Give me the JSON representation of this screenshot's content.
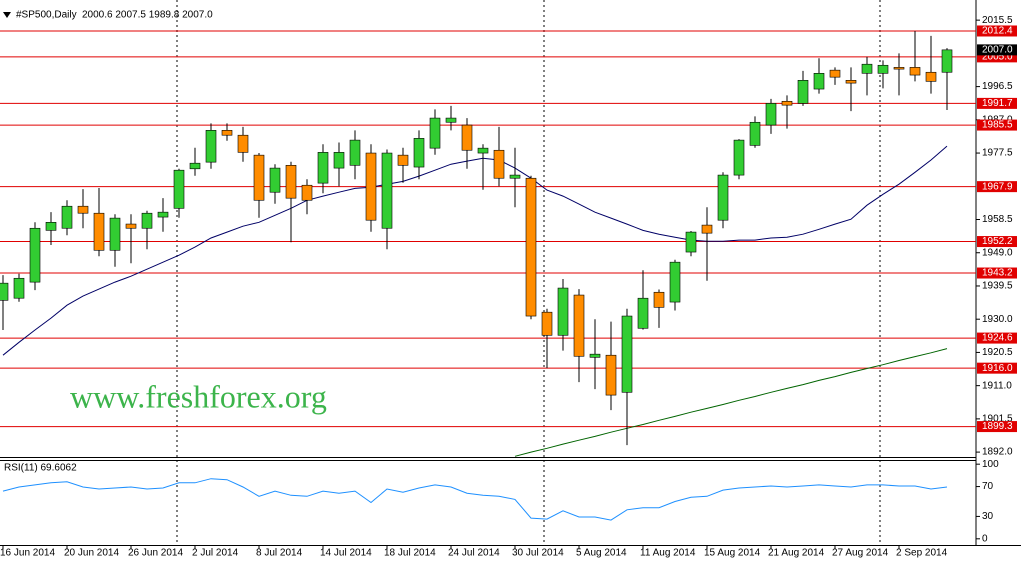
{
  "chart_data": [
    {
      "type": "candlestick",
      "title": "#SP500,Daily",
      "ohlc_text": "2000.6 2007.5 1989.8 2007.0",
      "watermark": "www.freshforex.org",
      "categories": [
        "16 Jun 2014",
        null,
        null,
        null,
        "20 Jun 2014",
        null,
        null,
        null,
        "26 Jun 2014",
        null,
        null,
        null,
        "2 Jul 2014",
        null,
        null,
        null,
        "8 Jul 2014",
        null,
        null,
        null,
        "14 Jul 2014",
        null,
        null,
        null,
        "18 Jul 2014",
        null,
        null,
        null,
        "24 Jul 2014",
        null,
        null,
        null,
        "30 Jul 2014",
        null,
        null,
        null,
        "5 Aug 2014",
        null,
        null,
        null,
        "11 Aug 2014",
        null,
        null,
        null,
        "15 Aug 2014",
        null,
        null,
        null,
        "21 Aug 2014",
        null,
        null,
        null,
        "27 Aug 2014",
        null,
        null,
        null,
        "2 Sep 2014",
        null,
        null,
        null
      ],
      "open": [
        1935.4,
        1936,
        1940.6,
        1955.4,
        1956,
        1962.3,
        1960.3,
        1949.7,
        1957.2,
        1956,
        1959.2,
        1961.7,
        1973,
        1974.9,
        1984,
        1982.6,
        1976.9,
        1966.3,
        1974,
        1968.3,
        1968.9,
        1973.2,
        1974,
        1977.5,
        1956,
        1976.9,
        1973.5,
        1978.9,
        1986.3,
        1985.5,
        1977.5,
        1978.3,
        1970.3,
        1970.3,
        1932,
        1925.4,
        1936.9,
        1919.1,
        1919.7,
        1909.1,
        1927.4,
        1937.7,
        1934.9,
        1949.2,
        1956.9,
        1958.3,
        1971.2,
        1979.7,
        1985.5,
        1992.3,
        1991.7,
        1995.8,
        2001.2,
        1998.3,
        2000.3,
        2000.3,
        2002,
        2002,
        2000.6,
        2000.6
      ],
      "high": [
        1942.6,
        1943,
        1957.7,
        1960.6,
        1964,
        1967.2,
        1967.5,
        1960,
        1960,
        1961,
        1964.6,
        1973,
        1979,
        1986,
        1986,
        1985,
        1977.5,
        1974.3,
        1975,
        1970,
        1980,
        1980.5,
        1984,
        1980,
        1978.5,
        1979,
        1984,
        1990,
        1991,
        1987.5,
        1980,
        1985,
        1979,
        1971,
        1933,
        1941.5,
        1938.6,
        1930,
        1929.3,
        1933,
        1944,
        1938.5,
        1947,
        1955.2,
        1962,
        1972,
        1981.5,
        1988,
        1993,
        1994,
        2001,
        2004.6,
        2002,
        2002,
        2005,
        2004,
        2006,
        2012.4,
        2011,
        2007.5
      ],
      "low": [
        1926.9,
        1935,
        1938.3,
        1951.2,
        1954,
        1956,
        1948,
        1945,
        1946,
        1950,
        1955,
        1959,
        1971,
        1973,
        1981,
        1975,
        1959,
        1963,
        1952,
        1960,
        1966,
        1968,
        1970,
        1955,
        1950,
        1969,
        1970,
        1977,
        1984,
        1973,
        1967,
        1968,
        1962,
        1930,
        1916,
        1921,
        1912,
        1910,
        1904,
        1894,
        1927,
        1927.5,
        1932.5,
        1948,
        1941,
        1956,
        1970,
        1979,
        1983,
        1984.5,
        1991,
        1994.5,
        1997,
        1989.5,
        1994,
        1996,
        1994,
        1998,
        1994.5,
        1989.8
      ],
      "close": [
        1940.3,
        1941.7,
        1956,
        1957.7,
        1962.3,
        1960.3,
        1949.7,
        1958.9,
        1956,
        1960.3,
        1960.6,
        1972.6,
        1974.6,
        1984,
        1982.6,
        1977.7,
        1964,
        1973.2,
        1964.6,
        1964,
        1977.7,
        1977.7,
        1981.2,
        1958.3,
        1977.5,
        1974,
        1981.7,
        1987.5,
        1987.5,
        1978.3,
        1978.9,
        1970.3,
        1971.2,
        1930.9,
        1925.4,
        1938.9,
        1919.4,
        1920,
        1908.3,
        1930.9,
        1936,
        1933.4,
        1946.3,
        1954.9,
        1954.6,
        1971.2,
        1981.2,
        1986.3,
        1991.7,
        1991.2,
        1998.3,
        2000.3,
        1999.2,
        1997.5,
        2002.9,
        2002.6,
        2001.5,
        1999.8,
        1998,
        2007
      ],
      "up_color": "#32cd32",
      "down_color": "#ff8c00",
      "lines": [
        {
          "color": "#000066",
          "values": [
            1919.7,
            1923.4,
            1926.9,
            1930.3,
            1934.0,
            1936.6,
            1938.6,
            1940.6,
            1942.3,
            1944.3,
            1946.3,
            1948.3,
            1950.6,
            1953.2,
            1954.9,
            1956.6,
            1957.7,
            1959.7,
            1961.7,
            1964.0,
            1965.2,
            1966.3,
            1967.4,
            1967.7,
            1968.6,
            1969.4,
            1970.9,
            1972.6,
            1974.3,
            1975.2,
            1976.0,
            1975.5,
            1973.2,
            1970.3,
            1966.9,
            1965.2,
            1962.9,
            1960.6,
            1958.9,
            1957.2,
            1955.4,
            1954.3,
            1953.4,
            1952.6,
            1952.3,
            1952.3,
            1952.6,
            1952.6,
            1953.2,
            1953.4,
            1954.3,
            1955.7,
            1957.2,
            1958.6,
            1962.6,
            1965.7,
            1968.6,
            1972.0,
            1975.5,
            1979.5
          ]
        },
        {
          "color": "#006400",
          "values": [
            null,
            null,
            null,
            null,
            null,
            null,
            null,
            null,
            null,
            null,
            null,
            null,
            null,
            null,
            null,
            null,
            null,
            null,
            null,
            null,
            null,
            null,
            null,
            null,
            null,
            null,
            null,
            null,
            null,
            null,
            null,
            null,
            1890.8,
            1892.0,
            1893.1,
            1894.3,
            1895.4,
            1896.5,
            1897.7,
            1898.8,
            1899.9,
            1901.1,
            1902.2,
            1903.4,
            1904.5,
            1905.6,
            1906.8,
            1907.9,
            1909.1,
            1910.2,
            1911.3,
            1912.5,
            1913.6,
            1914.8,
            1915.9,
            1917.0,
            1918.2,
            1919.3,
            1920.4,
            1921.6
          ]
        }
      ],
      "levels": [
        2012.4,
        {
          "value": 2005,
          "label": "2005.0"
        },
        1991.7,
        1985.5,
        1967.9,
        1952.2,
        1943.2,
        1924.6,
        {
          "value": 1916,
          "label": "1916.0"
        },
        1899.3
      ],
      "level_color": "#e00000",
      "last_price": {
        "value": 2007,
        "label": "2007.0"
      },
      "ylim": [
        1890.6,
        2018.4
      ],
      "yticks": [
        2015.5,
        1996.5,
        {
          "value": 1987,
          "label": "1987.0"
        },
        1977.5,
        1958.5,
        {
          "value": 1949,
          "label": "1949.0"
        },
        1939.5,
        {
          "value": 1930,
          "label": "1930.0"
        },
        1920.5,
        {
          "value": 1911,
          "label": "1911.0"
        },
        1901.5,
        {
          "value": 1892,
          "label": "1892.0"
        }
      ]
    },
    {
      "type": "line",
      "title": "RSI(11) 69.6062",
      "color": "#1e90ff",
      "values": [
        63.9,
        69.4,
        72.2,
        75.0,
        76.4,
        69.4,
        66.7,
        68.1,
        69.4,
        66.7,
        68.1,
        75.0,
        75.0,
        80.6,
        79.2,
        69.4,
        56.9,
        63.9,
        58.3,
        56.9,
        63.9,
        61.1,
        63.9,
        48.6,
        66.7,
        62.5,
        68.1,
        72.2,
        69.4,
        61.1,
        58.3,
        56.9,
        52.8,
        27.8,
        26.4,
        37.5,
        29.2,
        29.2,
        25.0,
        38.9,
        41.7,
        41.7,
        50.0,
        55.6,
        56.9,
        65.3,
        68.1,
        69.4,
        70.8,
        69.4,
        70.8,
        72.2,
        70.8,
        69.4,
        72.2,
        72.2,
        70.8,
        70.8,
        66.7,
        69.4
      ],
      "ylim": [
        -8.3,
        105.6
      ],
      "yticks": [
        100,
        70,
        30,
        0
      ]
    }
  ]
}
